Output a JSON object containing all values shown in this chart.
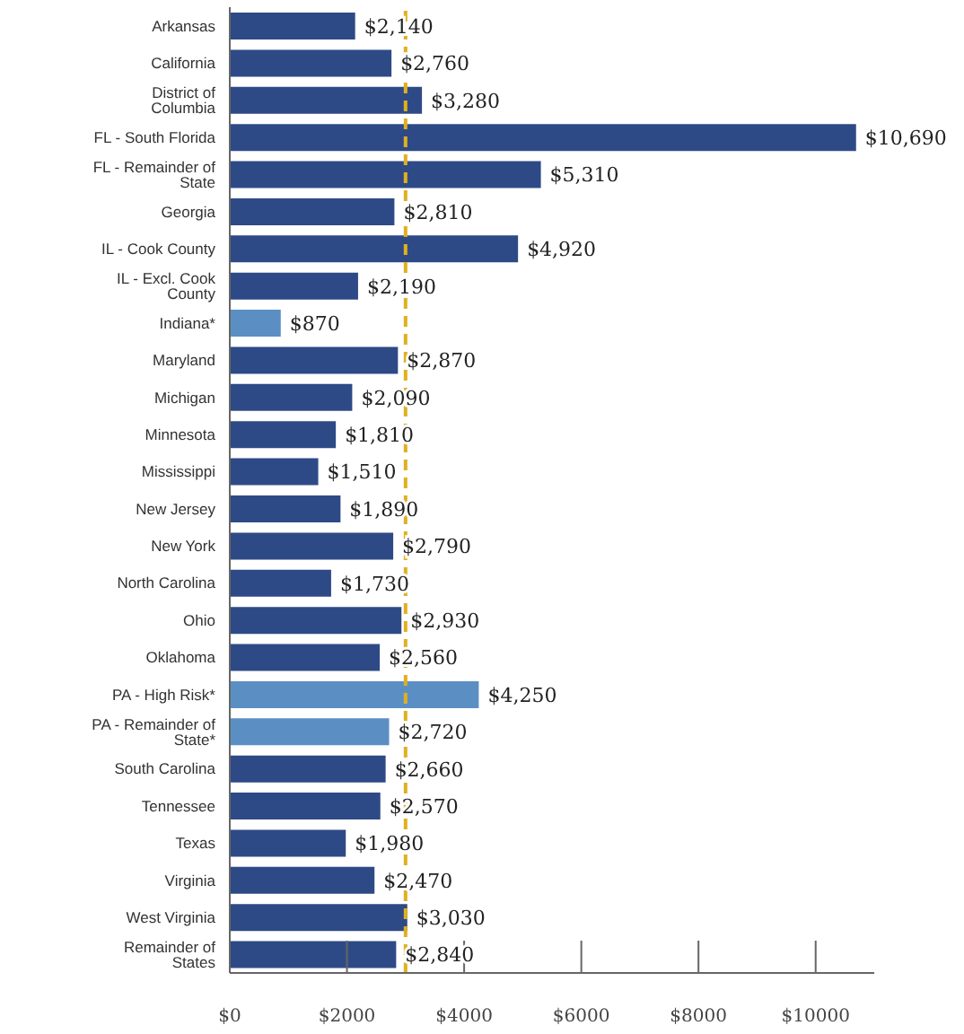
{
  "chart_data": {
    "type": "bar",
    "orientation": "horizontal",
    "categories": [
      "Arkansas",
      "California",
      "District of Columbia",
      "FL - South Florida",
      "FL - Remainder of State",
      "Georgia",
      "IL - Cook County",
      "IL - Excl. Cook County",
      "Indiana*",
      "Maryland",
      "Michigan",
      "Minnesota",
      "Mississippi",
      "New Jersey",
      "New York",
      "North Carolina",
      "Ohio",
      "Oklahoma",
      "PA - High Risk*",
      "PA - Remainder of State*",
      "South Carolina",
      "Tennessee",
      "Texas",
      "Virginia",
      "West Virginia",
      "Remainder of States"
    ],
    "values": [
      2140,
      2760,
      3280,
      10690,
      5310,
      2810,
      4920,
      2190,
      870,
      2870,
      2090,
      1810,
      1510,
      1890,
      2790,
      1730,
      2930,
      2560,
      4250,
      2720,
      2660,
      2570,
      1980,
      2470,
      3030,
      2840
    ],
    "colors": [
      "#2e4a86",
      "#2e4a86",
      "#2e4a86",
      "#2e4a86",
      "#2e4a86",
      "#2e4a86",
      "#2e4a86",
      "#2e4a86",
      "#5b8fc4",
      "#2e4a86",
      "#2e4a86",
      "#2e4a86",
      "#2e4a86",
      "#2e4a86",
      "#2e4a86",
      "#2e4a86",
      "#2e4a86",
      "#2e4a86",
      "#5b8fc4",
      "#5b8fc4",
      "#2e4a86",
      "#2e4a86",
      "#2e4a86",
      "#2e4a86",
      "#2e4a86",
      "#2e4a86"
    ],
    "value_labels": [
      "$2,140",
      "$2,760",
      "$3,280",
      "$10,690",
      "$5,310",
      "$2,810",
      "$4,920",
      "$2,190",
      "$870",
      "$2,870",
      "$2,090",
      "$1,810",
      "$1,510",
      "$1,890",
      "$2,790",
      "$1,730",
      "$2,930",
      "$2,560",
      "$4,250",
      "$2,720",
      "$2,660",
      "$2,570",
      "$1,980",
      "$2,470",
      "$3,030",
      "$2,840"
    ],
    "xlim": [
      0,
      11000
    ],
    "xticks": [
      {
        "value": 0,
        "label": "$0"
      },
      {
        "value": 2000,
        "label": "$2000"
      },
      {
        "value": 4000,
        "label": "$4000"
      },
      {
        "value": 6000,
        "label": "$6000"
      },
      {
        "value": 8000,
        "label": "$8000"
      },
      {
        "value": 10000,
        "label": "$10000"
      }
    ],
    "ref_lines": [
      {
        "axis": "x",
        "value": 3000,
        "color": "#e0b020",
        "line_style": "dashed"
      }
    ],
    "grid": false,
    "legend": false
  }
}
